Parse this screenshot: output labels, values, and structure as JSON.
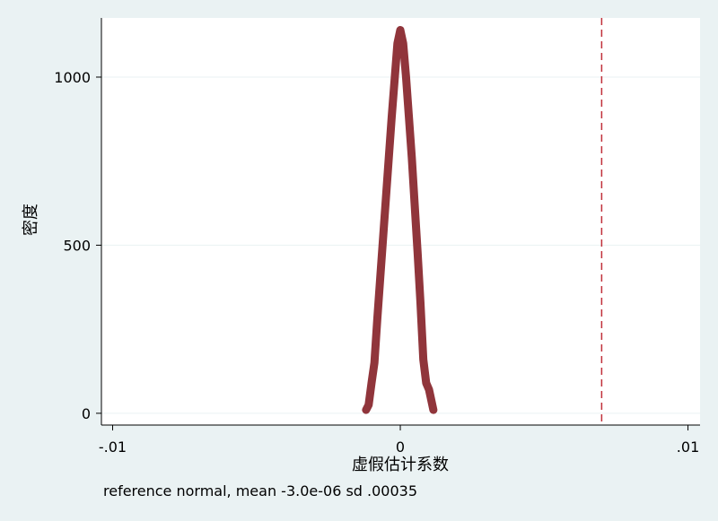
{
  "chart_data": {
    "type": "line",
    "xlabel": "虚假估计系数",
    "ylabel": "密度",
    "note": "reference normal, mean -3.0e-06 sd .00035",
    "x": [
      -0.00119,
      -0.0011,
      -0.001,
      -0.0009,
      -0.0008,
      -0.0007,
      -0.0006,
      -0.0005,
      -0.0004,
      -0.0003,
      -0.0002,
      -0.0001,
      0,
      0.0001,
      0.0002,
      0.0003,
      0.0004,
      0.0005,
      0.0006,
      0.0007,
      0.0008,
      0.0009,
      0.001,
      0.00115
    ],
    "values": [
      10,
      25,
      90,
      150,
      280,
      400,
      520,
      640,
      760,
      880,
      990,
      1100,
      1140,
      1100,
      1000,
      880,
      760,
      620,
      480,
      330,
      160,
      90,
      70,
      10
    ],
    "color": "#90353b",
    "xline": {
      "value": 0.007,
      "color": "#c0303a",
      "style": "dashed"
    },
    "xlim": [
      -0.01039,
      0.01042
    ],
    "ylim": [
      -35,
      1176
    ],
    "xticks": [
      {
        "value": -0.01,
        "label": "-.01"
      },
      0,
      {
        "value": 0.01,
        "label": ".01"
      }
    ],
    "yticks": [
      0,
      500,
      1000
    ],
    "grid": true
  }
}
